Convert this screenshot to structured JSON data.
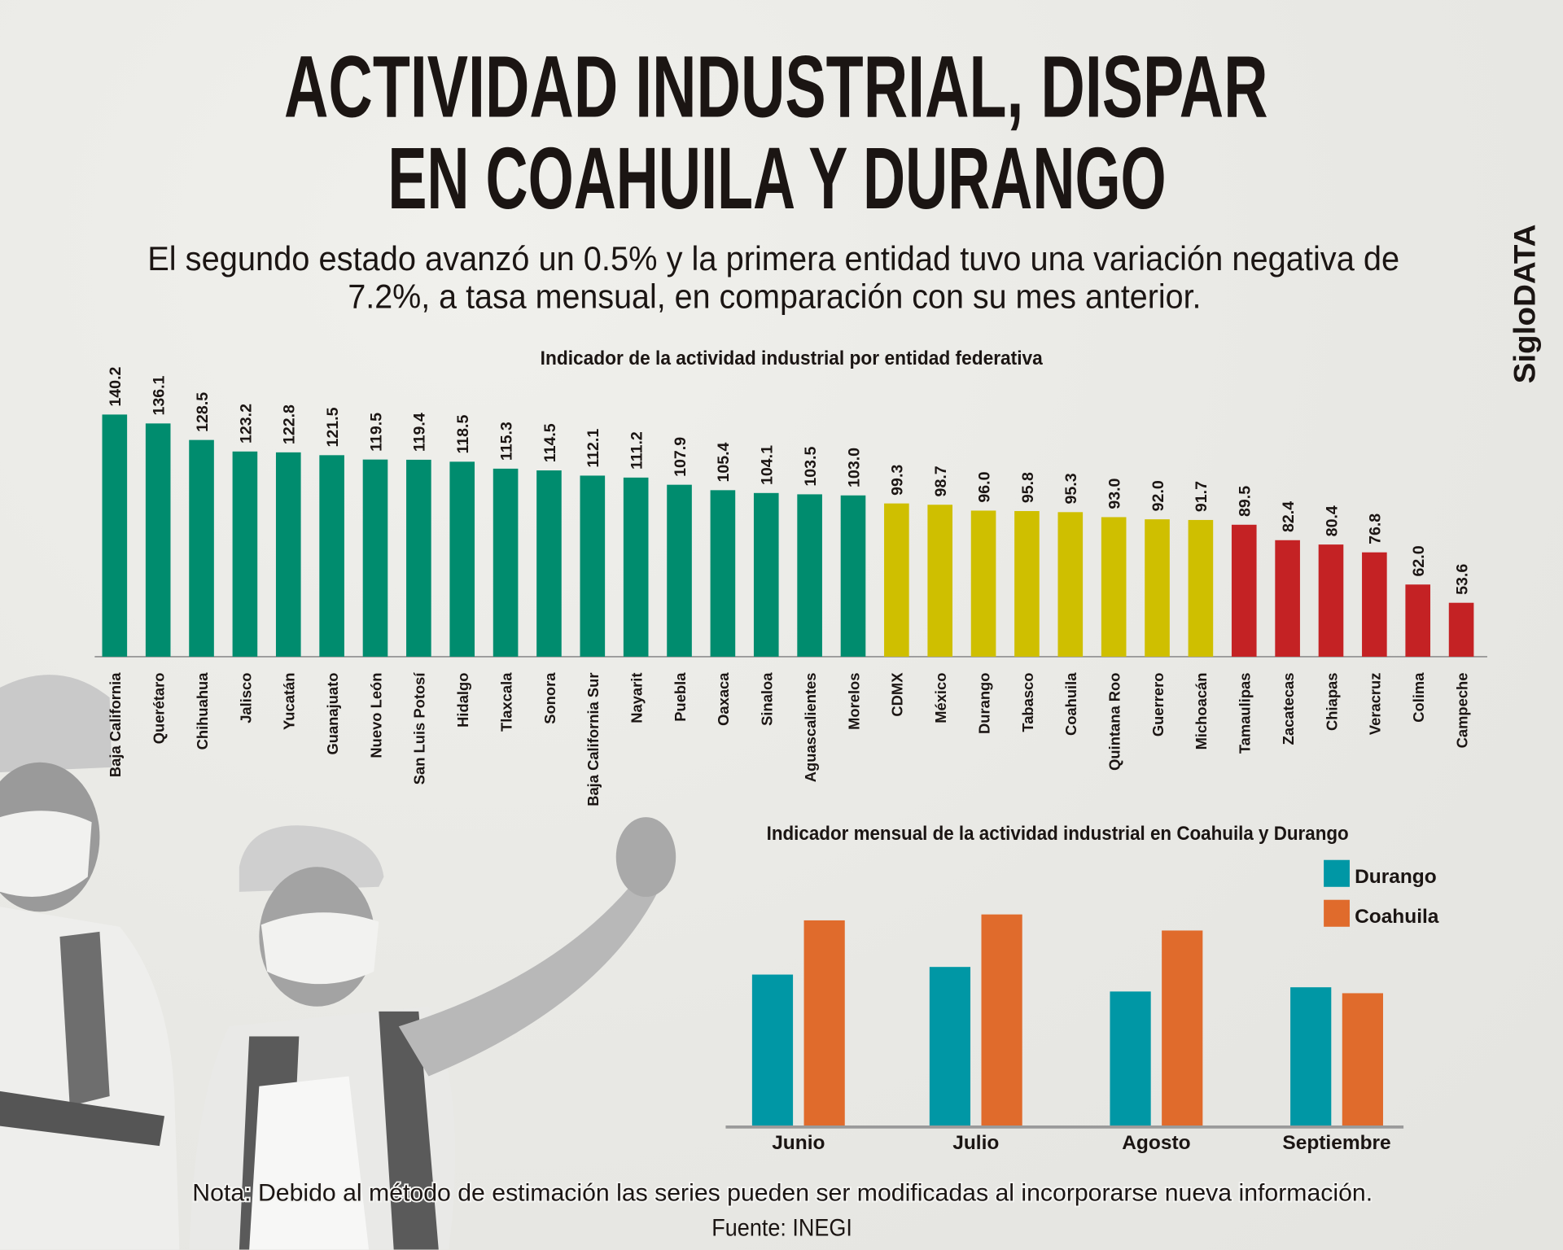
{
  "header": {
    "title_line1": "ACTIVIDAD INDUSTRIAL, DISPAR",
    "title_line2": "EN COAHUILA Y DURANGO",
    "subtitle_line1": "El segundo estado avanzó un 0.5% y la primera entidad tuvo una variación negativa de",
    "subtitle_line2": "7.2%, a tasa mensual, en comparación con su mes anterior.",
    "brand": "SigloDATA"
  },
  "footer": {
    "note": "Nota: Debido al método de estimación las series pueden ser modificadas al incorporarse nueva información.",
    "source": "Fuente: INEGI"
  },
  "chart_data": [
    {
      "type": "bar",
      "title": "Indicador de la actividad industrial por entidad federativa",
      "categories": [
        "Baja California",
        "Querétaro",
        "Chihuahua",
        "Jalisco",
        "Yucatán",
        "Guanajuato",
        "Nuevo León",
        "San Luis Potosí",
        "Hidalgo",
        "Tlaxcala",
        "Sonora",
        "Baja California Sur",
        "Nayarit",
        "Puebla",
        "Oaxaca",
        "Sinaloa",
        "Aguascalientes",
        "Morelos",
        "CDMX",
        "México",
        "Durango",
        "Tabasco",
        "Coahuila",
        "Quintana Roo",
        "Guerrero",
        "Michoacán",
        "Tamaulipas",
        "Zacatecas",
        "Chiapas",
        "Veracruz",
        "Colima",
        "Campeche"
      ],
      "values": [
        140.2,
        136.1,
        128.5,
        123.2,
        122.8,
        121.5,
        119.5,
        119.4,
        118.5,
        115.3,
        114.5,
        112.1,
        111.2,
        107.9,
        105.4,
        104.1,
        103.5,
        103.0,
        99.3,
        98.7,
        96.0,
        95.8,
        95.3,
        93.0,
        92.0,
        91.7,
        89.5,
        82.4,
        80.4,
        76.8,
        62.0,
        53.6
      ],
      "color_groups": {
        "above_103": "#008c6e",
        "between_91_100": "#cfbf00",
        "below_90": "#c42224"
      },
      "bar_colors": [
        "#008c6e",
        "#008c6e",
        "#008c6e",
        "#008c6e",
        "#008c6e",
        "#008c6e",
        "#008c6e",
        "#008c6e",
        "#008c6e",
        "#008c6e",
        "#008c6e",
        "#008c6e",
        "#008c6e",
        "#008c6e",
        "#008c6e",
        "#008c6e",
        "#008c6e",
        "#008c6e",
        "#cfbf00",
        "#cfbf00",
        "#cfbf00",
        "#cfbf00",
        "#cfbf00",
        "#cfbf00",
        "#cfbf00",
        "#cfbf00",
        "#c42224",
        "#c42224",
        "#c42224",
        "#c42224",
        "#c42224",
        "#c42224"
      ],
      "ylim": [
        28.8,
        140.2
      ],
      "grid": false,
      "data_labels": true
    },
    {
      "type": "bar",
      "title": "Indicador mensual de la actividad industrial en Coahuila y Durango",
      "categories": [
        "Junio",
        "Julio",
        "Agosto",
        "Septiembre"
      ],
      "series": [
        {
          "name": "Durango",
          "color": "#0097a5",
          "values": [
            97.5,
            98.4,
            95.5,
            96.0
          ]
        },
        {
          "name": "Coahuila",
          "color": "#e06b2c",
          "values": [
            103.9,
            104.6,
            102.7,
            95.3
          ]
        }
      ],
      "ylim": [
        79.5,
        106
      ],
      "grid": false,
      "legend": "top-right"
    }
  ]
}
